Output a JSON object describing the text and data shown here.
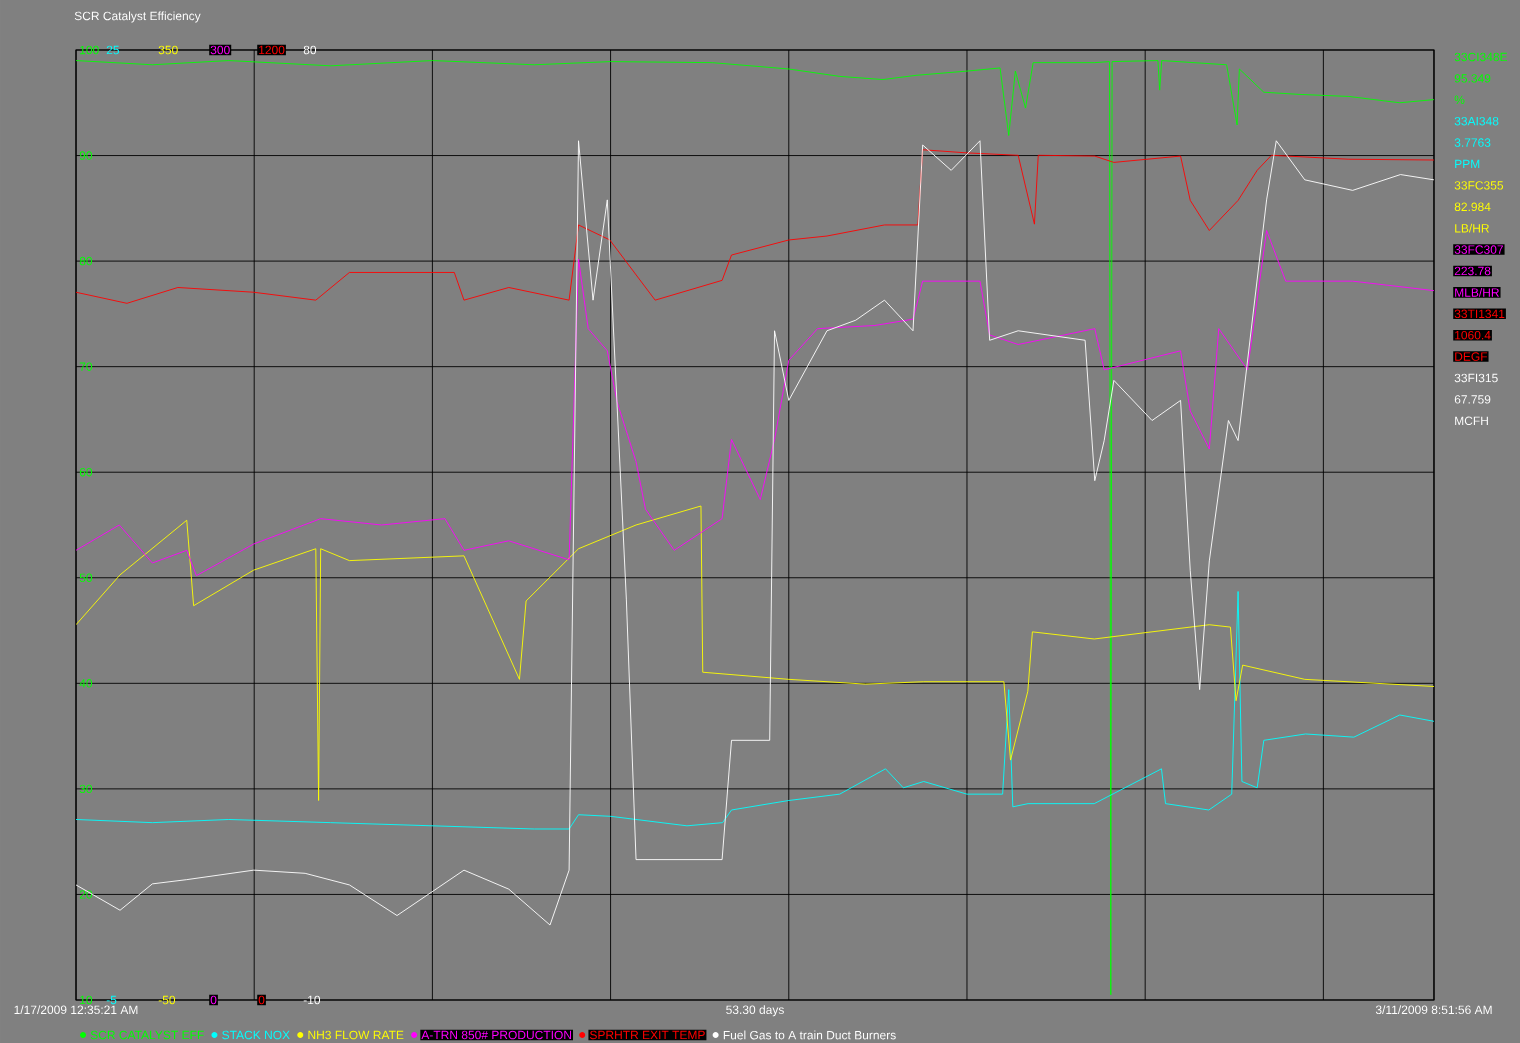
{
  "chart_data": [
    {
      "type": "line",
      "title": "SCR Catalyst Efficiency",
      "xlabel": "53.30 days",
      "xlim": [
        "2009-01-17T00:35",
        "2009-03-11T08:52"
      ],
      "xticks": [
        {
          "value": "2009-01-17T00:35",
          "label": "1/17/2009 12:35:21 AM"
        },
        {
          "value": "2009-01-24T00:35",
          "label": null
        },
        {
          "value": "2009-01-31T00:35",
          "label": null
        },
        {
          "value": "2009-02-07T00:35",
          "label": null
        },
        {
          "value": "2009-02-14T00:35",
          "label": null
        },
        {
          "value": "2009-02-21T00:35",
          "label": null
        },
        {
          "value": "2009-02-28T00:35",
          "label": null
        },
        {
          "value": "2009-03-07T00:35",
          "label": null
        },
        {
          "value": "2009-03-11T08:52",
          "label": "3/11/2009 8:51:56 AM"
        }
      ],
      "ylim": [
        10,
        100
      ],
      "yticks": [
        10,
        20,
        30,
        40,
        50,
        60,
        70,
        80,
        90,
        100
      ],
      "grid": true,
      "legend": "bottom",
      "series": [
        {
          "name": "SCR CATALYST EFF",
          "color": "#00ff00",
          "x": [
            "2009-01-17T00:35",
            "2009-01-20T00:35",
            "2009-01-23T00:35",
            "2009-01-27T00:35",
            "2009-01-31T00:35",
            "2009-02-04T00:35",
            "2009-02-07T00:35",
            "2009-02-11T00:35",
            "2009-02-14T00:35",
            "2009-02-16T00:35",
            "2009-02-17T17:23",
            "2009-02-19T00:35",
            "2009-02-21T00:35",
            "2009-02-22T07:47",
            "2009-02-22T15:57",
            "2009-02-22T22:11",
            "2009-02-23T07:47",
            "2009-02-23T14:59",
            "2009-02-26T00:35",
            "2009-02-26T14:59",
            "2009-02-26T16:11",
            "2009-02-26T17:23",
            "2009-02-28T12:35",
            "2009-02-28T14:16",
            "2009-02-28T16:11",
            "2009-03-03T05:23",
            "2009-03-03T15:14",
            "2009-03-03T17:23",
            "2009-03-04T16:26",
            "2009-03-06T00:35",
            "2009-03-08T00:35",
            "2009-03-10T00:35",
            "2009-03-11T08:52"
          ],
          "values": [
            99.0,
            98.6,
            99.0,
            98.5,
            99.0,
            98.6,
            98.9,
            98.8,
            98.2,
            97.5,
            97.2,
            97.6,
            98.0,
            98.3,
            91.9,
            98.0,
            94.5,
            98.8,
            98.8,
            98.9,
            10.5,
            98.9,
            99.0,
            96.2,
            99.0,
            98.6,
            92.9,
            98.2,
            96.0,
            95.8,
            95.6,
            95.0,
            95.3
          ]
        }
      ],
      "annotations": [
        "33CI348E",
        "95.349",
        "%"
      ]
    },
    {
      "type": "line",
      "tick_labels": "y",
      "legend": "bottom",
      "xlim": [
        "2009-01-17T00:35",
        "2009-03-11T08:52"
      ],
      "ylim": [
        -5,
        25
      ],
      "yticks": [
        -5,
        25
      ],
      "series": [
        {
          "name": "STACK NOX",
          "color": "#00ffff",
          "x": [
            "2009-01-17T00:35",
            "2009-01-20T00:35",
            "2009-01-23T00:35",
            "2009-01-27T00:35",
            "2009-01-31T00:35",
            "2009-02-04T00:35",
            "2009-02-05T09:28",
            "2009-02-05T18:21",
            "2009-02-07T00:35",
            "2009-02-10T00:35",
            "2009-02-11T10:11",
            "2009-02-11T18:35",
            "2009-02-14T00:35",
            "2009-02-16T00:35",
            "2009-02-17T19:47",
            "2009-02-18T12:35",
            "2009-02-19T07:47",
            "2009-02-21T00:35",
            "2009-02-22T10:11",
            "2009-02-22T15:57",
            "2009-02-22T19:47",
            "2009-02-23T10:11",
            "2009-02-26T00:35",
            "2009-02-28T15:57",
            "2009-02-28T19:47",
            "2009-03-02T12:35",
            "2009-03-03T10:11",
            "2009-03-03T16:11",
            "2009-03-03T19:47",
            "2009-03-04T10:11",
            "2009-03-04T16:26",
            "2009-03-06T07:47",
            "2009-03-08T05:23",
            "2009-03-10T00:35",
            "2009-03-11T08:52"
          ],
          "values": [
            0.7,
            0.6,
            0.7,
            0.6,
            0.5,
            0.4,
            0.4,
            0.85,
            0.8,
            0.5,
            0.6,
            1.0,
            1.3,
            1.5,
            2.3,
            1.7,
            1.9,
            1.5,
            1.5,
            4.8,
            1.1,
            1.2,
            1.2,
            2.3,
            1.2,
            1.0,
            1.5,
            7.9,
            1.9,
            1.7,
            3.2,
            3.4,
            3.3,
            4.0,
            3.8
          ]
        }
      ],
      "annotations": [
        "33AI348",
        "3.7763",
        "PPM"
      ]
    },
    {
      "type": "line",
      "tick_labels": "y",
      "legend": "bottom",
      "xlim": [
        "2009-01-17T00:35",
        "2009-03-11T08:52"
      ],
      "ylim": [
        -50,
        350
      ],
      "yticks": [
        -50,
        350
      ],
      "series": [
        {
          "name": "NH3 FLOW RATE",
          "color": "#ffff00",
          "x": [
            "2009-01-17T00:35",
            "2009-01-18T18:06",
            "2009-01-21T08:59",
            "2009-01-21T15:28",
            "2009-01-24T00:06",
            "2009-01-26T10:40",
            "2009-01-26T13:18",
            "2009-01-26T15:14",
            "2009-01-27T18:21",
            "2009-02-01T06:21",
            "2009-02-03T10:40",
            "2009-02-03T16:55",
            "2009-02-05T18:21",
            "2009-02-08T00:35",
            "2009-02-10T13:47",
            "2009-02-10T15:28",
            "2009-02-14T00:35",
            "2009-02-17T00:50",
            "2009-02-19T07:47",
            "2009-02-22T11:23",
            "2009-02-22T17:38",
            "2009-02-23T09:57",
            "2009-02-23T14:16",
            "2009-02-26T00:35",
            "2009-03-02T13:04",
            "2009-03-03T08:59",
            "2009-03-03T14:16",
            "2009-03-03T20:30",
            "2009-03-06T07:04",
            "2009-03-11T08:52"
          ],
          "values": [
            108,
            129,
            152,
            116,
            131,
            140,
            34,
            140,
            135,
            137,
            85,
            118,
            140,
            150,
            158,
            88,
            85,
            83,
            84,
            84,
            51,
            80,
            105,
            102,
            108,
            107,
            76,
            91,
            85,
            82
          ]
        }
      ],
      "annotations": [
        "33FC355",
        "82.984",
        "LB/HR"
      ]
    },
    {
      "type": "line",
      "tick_labels": "y",
      "legend": "bottom",
      "xlim": [
        "2009-01-17T00:35",
        "2009-03-11T08:52"
      ],
      "ylim": [
        0,
        300
      ],
      "yticks": [
        0,
        300
      ],
      "series": [
        {
          "name": "A-TRN 850# PRODUCTION",
          "color": "#ff00ff",
          "x": [
            "2009-01-17T00:35",
            "2009-01-18T17:23",
            "2009-01-20T00:35",
            "2009-01-21T08:59",
            "2009-01-21T18:06",
            "2009-01-24T00:06",
            "2009-01-26T15:14",
            "2009-01-29T00:35",
            "2009-01-31T12:21",
            "2009-02-01T06:21",
            "2009-02-03T00:35",
            "2009-02-05T09:28",
            "2009-02-05T18:21",
            "2009-02-06T03:28",
            "2009-02-06T21:28",
            "2009-02-07T06:35",
            "2009-02-08T00:35",
            "2009-02-08T09:28",
            "2009-02-09T12:35",
            "2009-02-11T09:42",
            "2009-02-11T18:35",
            "2009-02-12T21:42",
            "2009-02-13T11:09",
            "2009-02-14T00:35",
            "2009-02-15T03:42",
            "2009-02-17T09:42",
            "2009-02-18T21:42",
            "2009-02-19T06:49",
            "2009-02-20T00:50",
            "2009-02-21T12:50",
            "2009-02-21T21:57",
            "2009-02-23T00:50",
            "2009-02-26T01:04",
            "2009-02-26T09:57",
            "2009-03-01T09:57",
            "2009-03-01T19:04",
            "2009-03-02T13:04",
            "2009-03-02T21:57",
            "2009-03-04T01:04",
            "2009-03-04T19:04",
            "2009-03-05T13:04",
            "2009-03-08T04:11",
            "2009-03-11T08:52"
          ],
          "values": [
            142,
            150,
            138,
            142,
            134,
            144,
            152,
            150,
            152,
            142,
            145,
            139,
            234,
            212,
            205,
            189,
            170,
            155,
            142,
            152,
            177,
            158,
            177,
            202,
            212,
            213,
            215,
            227,
            227,
            227,
            210,
            207,
            212,
            199,
            205,
            186,
            174,
            212,
            199,
            243,
            227,
            227,
            224
          ]
        }
      ],
      "annotations": [
        "33FC307",
        "223.78",
        "MLB/HR"
      ]
    },
    {
      "type": "line",
      "tick_labels": "y",
      "legend": "bottom",
      "xlim": [
        "2009-01-17T00:35",
        "2009-03-11T08:52"
      ],
      "ylim": [
        0,
        1200
      ],
      "yticks": [
        0,
        1200
      ],
      "series": [
        {
          "name": "SPRHTR EXIT TEMP",
          "color": "#ff0000",
          "x": [
            "2009-01-17T00:35",
            "2009-01-19T00:35",
            "2009-01-21T00:35",
            "2009-01-24T00:06",
            "2009-01-26T10:40",
            "2009-01-27T18:21",
            "2009-01-31T21:14",
            "2009-02-01T06:21",
            "2009-02-03T00:35",
            "2009-02-05T09:28",
            "2009-02-05T18:21",
            "2009-02-06T23:52",
            "2009-02-08T18:35",
            "2009-02-11T09:42",
            "2009-02-11T18:35",
            "2009-02-14T00:35",
            "2009-02-15T12:35",
            "2009-02-17T18:50",
            "2009-02-19T02:16",
            "2009-02-19T06:49",
            "2009-02-21T00:35",
            "2009-02-23T00:50",
            "2009-02-23T16:11",
            "2009-02-23T19:47",
            "2009-02-26T01:04",
            "2009-02-26T19:04",
            "2009-03-01T09:57",
            "2009-03-01T19:04",
            "2009-03-02T13:04",
            "2009-03-03T16:11",
            "2009-03-04T10:11",
            "2009-03-04T23:38",
            "2009-03-08T00:35",
            "2009-03-11T08:52"
          ],
          "values": [
            894,
            880,
            900,
            894,
            884,
            919,
            919,
            884,
            900,
            884,
            979,
            960,
            884,
            909,
            941,
            960,
            965,
            979,
            979,
            1074,
            1070,
            1067,
            980,
            1067,
            1066,
            1058,
            1066,
            1010,
            972,
            1010,
            1048,
            1067,
            1062,
            1061
          ]
        }
      ],
      "annotations": [
        "33TI1341",
        "1060.4",
        "DEGF"
      ]
    },
    {
      "type": "line",
      "tick_labels": "y",
      "legend": "bottom",
      "xlim": [
        "2009-01-17T00:35",
        "2009-03-11T08:52"
      ],
      "ylim": [
        -10,
        80
      ],
      "yticks": [
        -10,
        80
      ],
      "series": [
        {
          "name": "Fuel Gas to A train Duct Burners",
          "color": "#ffffff",
          "x": [
            "2009-01-17T00:35",
            "2009-01-18T18:06",
            "2009-01-20T00:35",
            "2009-01-21T08:59",
            "2009-01-24T00:06",
            "2009-01-26T00:35",
            "2009-01-27T18:21",
            "2009-01-29T15:14",
            "2009-02-01T06:21",
            "2009-02-03T00:35",
            "2009-02-04T15:28",
            "2009-02-05T09:28",
            "2009-02-05T18:21",
            "2009-02-06T08:02",
            "2009-02-06T21:28",
            "2009-02-07T15:28",
            "2009-02-08T00:35",
            "2009-02-11T09:42",
            "2009-02-11T18:35",
            "2009-02-13T06:35",
            "2009-02-13T11:09",
            "2009-02-14T00:35",
            "2009-02-15T12:35",
            "2009-02-16T15:43",
            "2009-02-17T18:50",
            "2009-02-18T21:42",
            "2009-02-19T06:49",
            "2009-02-20T09:42",
            "2009-02-21T12:50",
            "2009-02-21T21:57",
            "2009-02-23T00:50",
            "2009-02-25T15:57",
            "2009-02-26T01:04",
            "2009-02-26T09:57",
            "2009-02-26T19:04",
            "2009-02-28T07:04",
            "2009-03-01T09:57",
            "2009-03-01T19:04",
            "2009-03-02T03:57",
            "2009-03-02T13:04",
            "2009-03-03T07:04",
            "2009-03-03T16:11",
            "2009-03-04T19:04",
            "2009-03-05T04:11",
            "2009-03-06T07:04",
            "2009-03-08T04:11",
            "2009-03-10T01:18",
            "2009-03-11T08:52"
          ],
          "values": [
            0.9,
            -1.5,
            1.0,
            1.4,
            2.3,
            2.0,
            0.9,
            -2.0,
            2.3,
            0.5,
            -2.9,
            2.3,
            71.4,
            56.3,
            65.8,
            27.9,
            3.3,
            3.3,
            14.6,
            14.6,
            53.4,
            46.8,
            53.4,
            54.4,
            56.3,
            53.4,
            71.0,
            68.6,
            71.4,
            52.5,
            53.4,
            52.5,
            39.2,
            43.0,
            48.7,
            44.9,
            46.8,
            30.7,
            19.4,
            31.6,
            44.9,
            43.0,
            65.8,
            71.4,
            67.7,
            66.7,
            68.2,
            67.7
          ]
        }
      ],
      "annotations": [
        "33FI315",
        "67.759",
        "MCFH"
      ]
    }
  ]
}
